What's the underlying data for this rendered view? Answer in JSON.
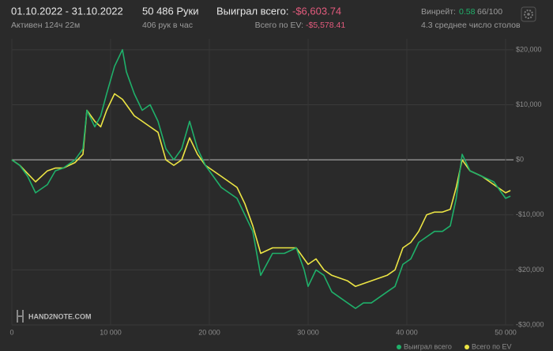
{
  "header": {
    "period": "01.10.2022 - 31.10.2022",
    "active": "Активен 124ч 22м",
    "hands": "50 486 Руки",
    "hands_per_hour": "406 рук в час",
    "won_label": "Выиграл всего:",
    "won_value": "-$6,603.74",
    "ev_label": "Всего по EV:",
    "ev_value": "-$5,578.41",
    "winrate_label": "Винрейт:",
    "winrate_value": "0.58",
    "winrate_unit": "66/100",
    "tables": "4.3 среднее число столов"
  },
  "watermark": "HAND2NOTE.COM",
  "chart_data": {
    "type": "line",
    "legend": "bottom",
    "grid": true,
    "x": [
      0,
      800,
      1600,
      2400,
      3600,
      4400,
      5200,
      6400,
      7200,
      7600,
      8400,
      9000,
      9600,
      10400,
      11200,
      11600,
      12400,
      13200,
      14000,
      14800,
      15600,
      16400,
      17200,
      18000,
      18800,
      19600,
      20000,
      21200,
      22800,
      23600,
      24400,
      25200,
      26400,
      27600,
      28800,
      29600,
      30000,
      30800,
      31600,
      32400,
      33200,
      34000,
      34800,
      35600,
      36400,
      37200,
      38000,
      38800,
      39600,
      40400,
      41200,
      42000,
      42800,
      43600,
      44400,
      45000,
      45600,
      46400,
      47600,
      48800,
      50000,
      50486
    ],
    "series": [
      {
        "name": "Выиграл всего",
        "color": "#1fb06a",
        "values": [
          0,
          -1000,
          -3000,
          -6000,
          -4500,
          -2000,
          -1500,
          0,
          2000,
          9000,
          6000,
          8000,
          12000,
          17000,
          20000,
          16000,
          12000,
          9000,
          10000,
          7000,
          2000,
          0,
          2000,
          7000,
          2000,
          -1000,
          -2000,
          -5000,
          -7000,
          -10000,
          -13000,
          -21000,
          -17000,
          -17000,
          -16000,
          -20000,
          -23000,
          -20000,
          -21000,
          -24000,
          -25000,
          -26000,
          -27000,
          -26000,
          -26000,
          -25000,
          -24000,
          -23000,
          -19000,
          -18000,
          -15000,
          -14000,
          -13000,
          -13000,
          -12000,
          -7000,
          1000,
          -2000,
          -3000,
          -4000,
          -7000,
          -6604
        ]
      },
      {
        "name": "Всего по EV",
        "color": "#ece544",
        "values": [
          0,
          -1000,
          -2500,
          -4000,
          -2000,
          -1500,
          -1500,
          -500,
          1000,
          9000,
          7000,
          6000,
          9000,
          12000,
          11000,
          10000,
          8000,
          7000,
          6000,
          5000,
          0,
          -1000,
          0,
          4000,
          1000,
          -1000,
          -1500,
          -3000,
          -5000,
          -8000,
          -12000,
          -17000,
          -16000,
          -16000,
          -16000,
          -18000,
          -19000,
          -18000,
          -20000,
          -21000,
          -21500,
          -22000,
          -23000,
          -22500,
          -22000,
          -21500,
          -21000,
          -20000,
          -16000,
          -15000,
          -13000,
          -10000,
          -9500,
          -9500,
          -9000,
          -5000,
          0,
          -2000,
          -3000,
          -4500,
          -6000,
          -5578
        ]
      }
    ],
    "xlim": [
      0,
      50800
    ],
    "ylim": [
      -30000,
      22000
    ],
    "xticks": [
      0,
      {
        "value": 10000,
        "label": "10 000"
      },
      {
        "value": 20000,
        "label": "20 000"
      },
      {
        "value": 30000,
        "label": "30 000"
      },
      {
        "value": 40000,
        "label": "40 000"
      },
      {
        "value": 50000,
        "label": "50 000"
      }
    ],
    "yticks": [
      {
        "value": 20000,
        "label": "$20,000"
      },
      {
        "value": 10000,
        "label": "$10,000"
      },
      {
        "value": 0,
        "label": "$0"
      },
      {
        "value": -10000,
        "label": "-$10,000"
      },
      {
        "value": -20000,
        "label": "-$20,000"
      },
      {
        "value": -30000,
        "label": "-$30,000"
      }
    ]
  }
}
